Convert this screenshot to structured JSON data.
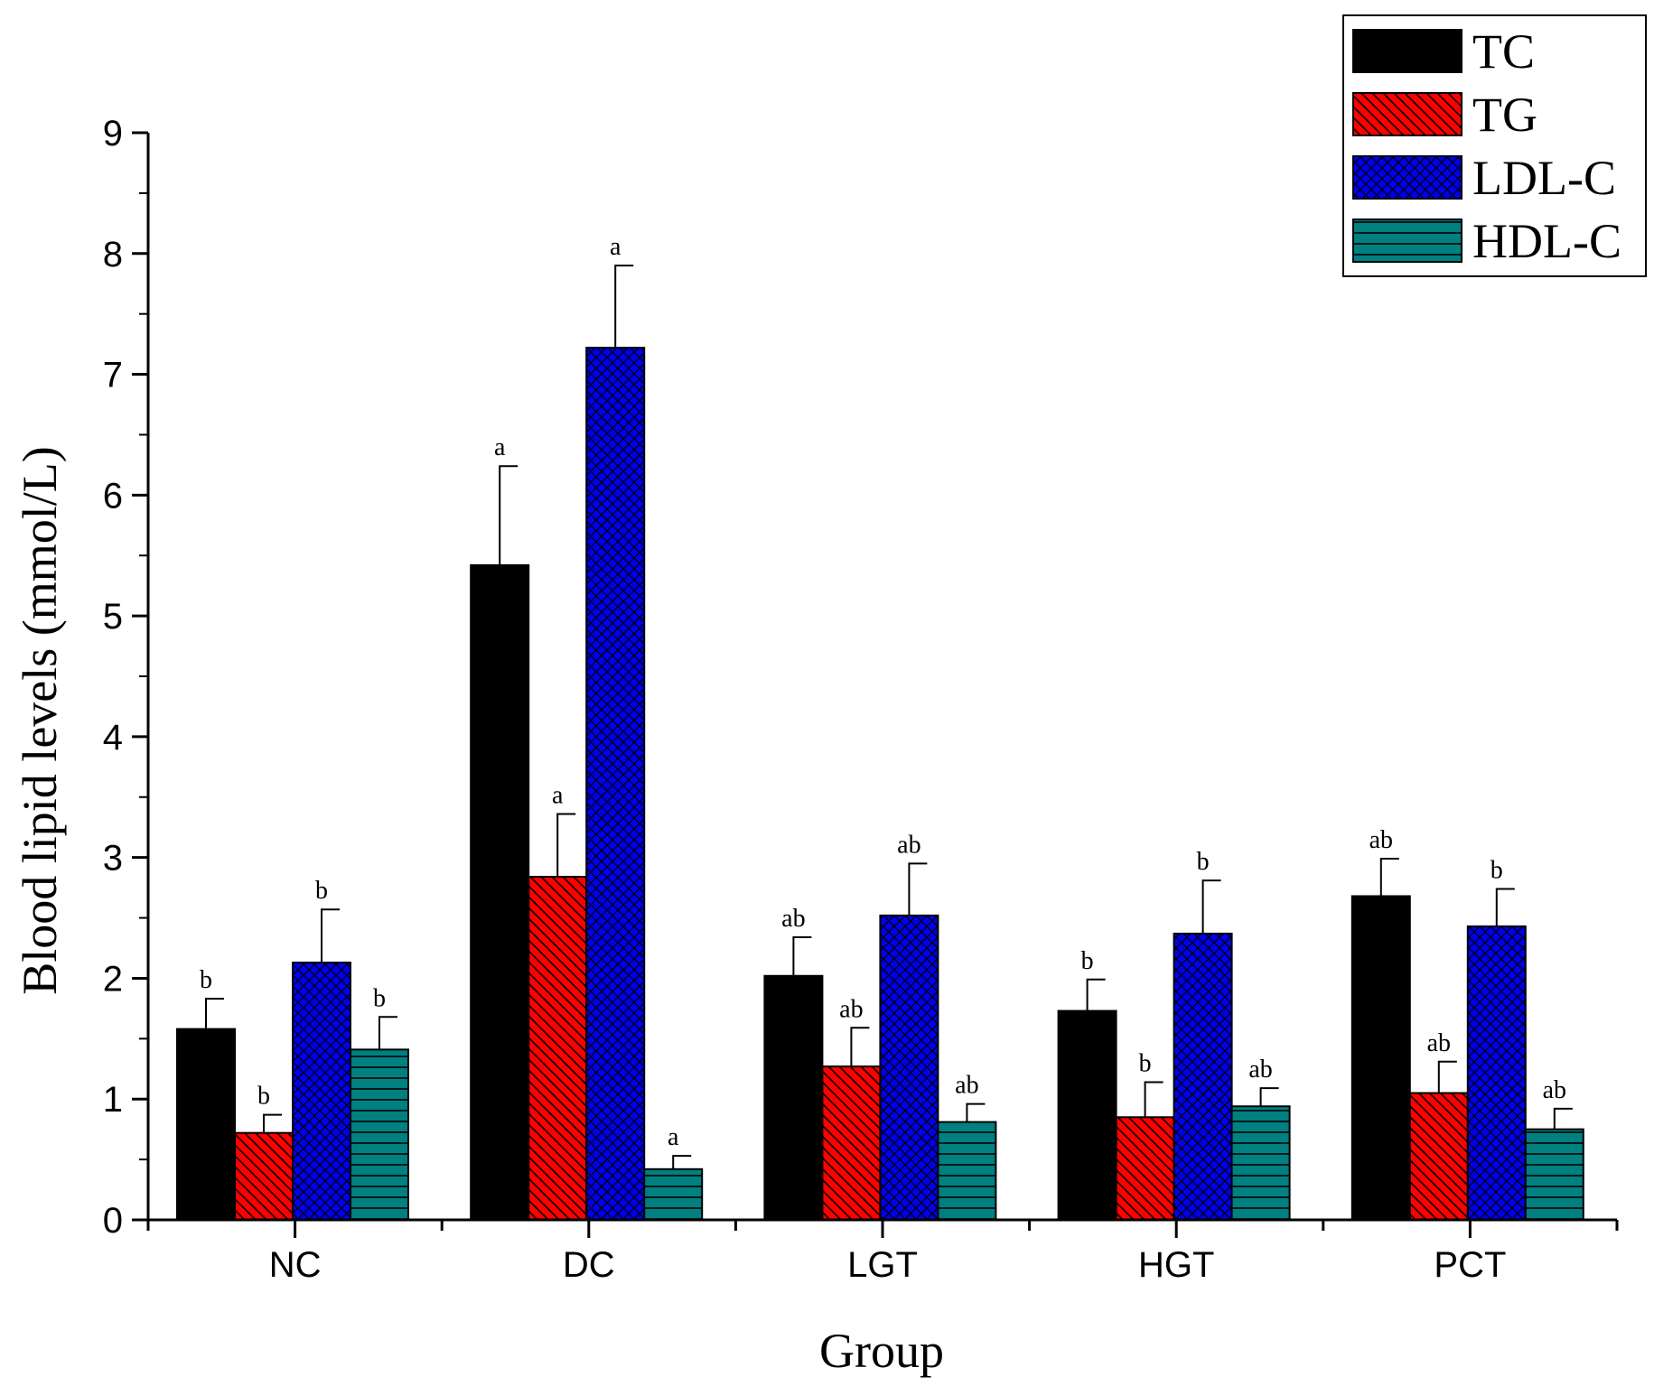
{
  "chart_data": {
    "type": "bar",
    "title": "",
    "xlabel": "Group",
    "ylabel": "Blood lipid levels (mmol/L)",
    "ylim": [
      0,
      9
    ],
    "yticks": [
      "0",
      "1",
      "2",
      "3",
      "4",
      "5",
      "6",
      "7",
      "8",
      "9"
    ],
    "categories": [
      "NC",
      "DC",
      "LGT",
      "HGT",
      "PCT"
    ],
    "legend_position": "top-right",
    "series": [
      {
        "name": "TC",
        "color": "#000000",
        "pattern": "solid",
        "values": [
          1.58,
          5.42,
          2.02,
          1.73,
          2.68
        ],
        "errors": [
          0.25,
          0.82,
          0.32,
          0.26,
          0.31
        ],
        "labels": [
          "b",
          "a",
          "ab",
          "b",
          "ab"
        ]
      },
      {
        "name": "TG",
        "color": "#ff0000",
        "pattern": "diagonal",
        "values": [
          0.72,
          2.84,
          1.27,
          0.85,
          1.05
        ],
        "errors": [
          0.15,
          0.52,
          0.32,
          0.29,
          0.26
        ],
        "labels": [
          "b",
          "a",
          "ab",
          "b",
          "ab"
        ]
      },
      {
        "name": "LDL-C",
        "color": "#0000ee",
        "pattern": "crosshatch",
        "values": [
          2.13,
          7.22,
          2.52,
          2.37,
          2.43
        ],
        "errors": [
          0.44,
          0.68,
          0.43,
          0.44,
          0.31
        ],
        "labels": [
          "b",
          "a",
          "ab",
          "b",
          "b"
        ]
      },
      {
        "name": "HDL-C",
        "color": "#008080",
        "pattern": "horizontal",
        "values": [
          1.41,
          0.42,
          0.81,
          0.94,
          0.75
        ],
        "errors": [
          0.27,
          0.11,
          0.15,
          0.15,
          0.17
        ],
        "labels": [
          "b",
          "a",
          "ab",
          "ab",
          "ab"
        ]
      }
    ]
  }
}
